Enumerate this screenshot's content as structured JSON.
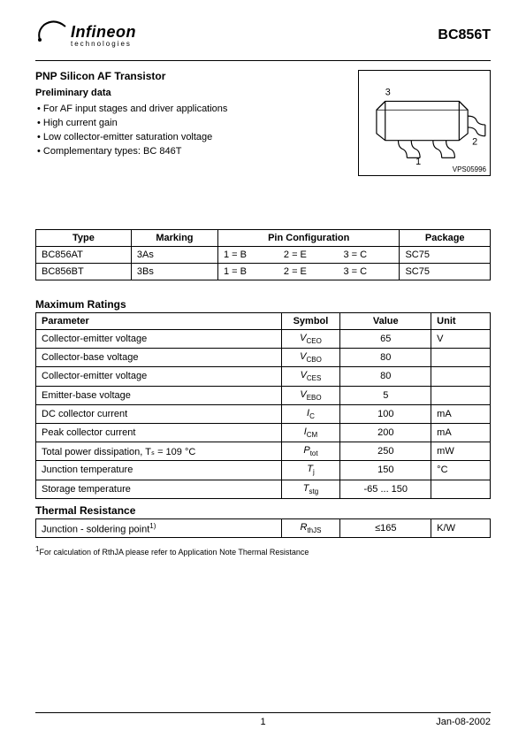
{
  "header": {
    "logo_text": "Infineon",
    "logo_sub": "technologies",
    "part_number": "BC856T"
  },
  "title_block": {
    "main_title": "PNP Silicon AF Transistor",
    "subtitle": "Preliminary data",
    "features": [
      "For AF input stages and driver applications",
      "High current gain",
      "Low collector-emitter saturation voltage",
      "Complementary types: BC 846T"
    ]
  },
  "diagram": {
    "pin1": "1",
    "pin2": "2",
    "pin3": "3",
    "label": "VPS05996"
  },
  "type_table": {
    "headers": [
      "Type",
      "Marking",
      "Pin Configuration",
      "Package"
    ],
    "rows": [
      {
        "type": "BC856AT",
        "marking": "3As",
        "p1": "1 = B",
        "p2": "2 = E",
        "p3": "3 = C",
        "pkg": "SC75"
      },
      {
        "type": "BC856BT",
        "marking": "3Bs",
        "p1": "1 = B",
        "p2": "2 = E",
        "p3": "3 = C",
        "pkg": "SC75"
      }
    ]
  },
  "ratings": {
    "title": "Maximum Ratings",
    "headers": {
      "param": "Parameter",
      "symbol": "Symbol",
      "value": "Value",
      "unit": "Unit"
    },
    "rows": [
      {
        "param": "Collector-emitter voltage",
        "sym_main": "V",
        "sym_sub": "CEO",
        "value": "65",
        "unit": "V"
      },
      {
        "param": "Collector-base voltage",
        "sym_main": "V",
        "sym_sub": "CBO",
        "value": "80",
        "unit": ""
      },
      {
        "param": "Collector-emitter voltage",
        "sym_main": "V",
        "sym_sub": "CES",
        "value": "80",
        "unit": ""
      },
      {
        "param": "Emitter-base voltage",
        "sym_main": "V",
        "sym_sub": "EBO",
        "value": "5",
        "unit": ""
      },
      {
        "param": "DC collector current",
        "sym_main": "I",
        "sym_sub": "C",
        "value": "100",
        "unit": "mA"
      },
      {
        "param": "Peak collector current",
        "sym_main": "I",
        "sym_sub": "CM",
        "value": "200",
        "unit": "mA"
      },
      {
        "param": "Total power dissipation, Tₛ = 109 °C",
        "sym_main": "P",
        "sym_sub": "tot",
        "value": "250",
        "unit": "mW"
      },
      {
        "param": "Junction temperature",
        "sym_main": "T",
        "sym_sub": "j",
        "value": "150",
        "unit": "°C"
      },
      {
        "param": "Storage temperature",
        "sym_main": "T",
        "sym_sub": "stg",
        "value": "-65 ... 150",
        "unit": ""
      }
    ]
  },
  "thermal": {
    "title": "Thermal Resistance",
    "row": {
      "param": "Junction - soldering point",
      "sup": "1)",
      "sym_main": "R",
      "sym_sub": "thJS",
      "value": "≤165",
      "unit": "K/W"
    }
  },
  "footnote": {
    "sup": "1",
    "text": "For calculation of RthJA please refer to Application Note Thermal Resistance"
  },
  "footer": {
    "page": "1",
    "date": "Jan-08-2002"
  }
}
